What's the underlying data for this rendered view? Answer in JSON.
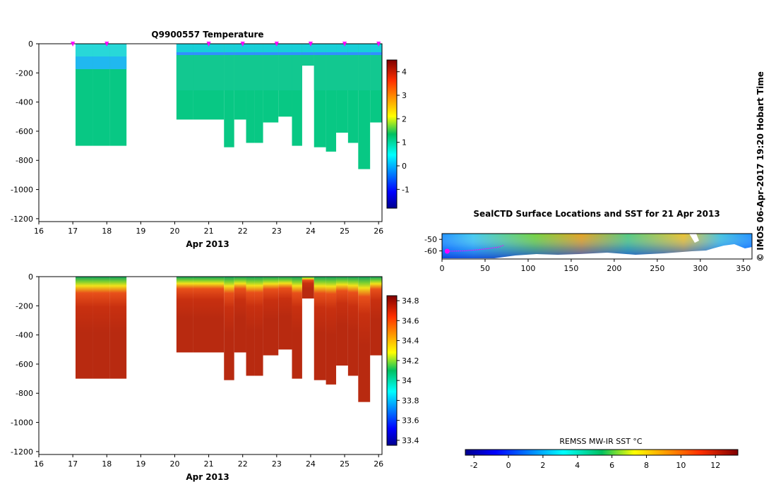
{
  "credit": "© IMOS 06-Apr-2017 19:20 Hobart Time",
  "chart_data": [
    {
      "name": "temperature-profile",
      "type": "heatmap",
      "title": "Q9900557  Temperature",
      "xlabel": "Apr 2013",
      "xticks": [
        "16",
        "17",
        "18",
        "19",
        "20",
        "21",
        "22",
        "23",
        "24",
        "25",
        "26"
      ],
      "xlim": [
        16,
        26.1
      ],
      "yticks": [
        "0",
        "-200",
        "-400",
        "-600",
        "-800",
        "-1000",
        "-1200"
      ],
      "ylim": [
        -1220,
        0
      ],
      "colorbar": {
        "ticks": [
          "4",
          "3",
          "2",
          "1",
          "0",
          "-1"
        ],
        "range": [
          -1.8,
          4.5
        ]
      },
      "casts": [
        {
          "t0": 17.08,
          "t1": 17.58,
          "depth": 700
        },
        {
          "t0": 17.58,
          "t1": 18.08,
          "depth": 700
        },
        {
          "t0": 18.08,
          "t1": 18.58,
          "depth": 700
        },
        {
          "t0": 20.05,
          "t1": 20.55,
          "depth": 520
        },
        {
          "t0": 20.55,
          "t1": 21.05,
          "depth": 520
        },
        {
          "t0": 21.05,
          "t1": 21.45,
          "depth": 520
        },
        {
          "t0": 21.45,
          "t1": 21.75,
          "depth": 710
        },
        {
          "t0": 21.75,
          "t1": 22.1,
          "depth": 520
        },
        {
          "t0": 22.1,
          "t1": 22.35,
          "depth": 680
        },
        {
          "t0": 22.35,
          "t1": 22.6,
          "depth": 680
        },
        {
          "t0": 22.6,
          "t1": 23.05,
          "depth": 540
        },
        {
          "t0": 23.05,
          "t1": 23.45,
          "depth": 500
        },
        {
          "t0": 23.45,
          "t1": 23.75,
          "depth": 700
        },
        {
          "t0": 23.75,
          "t1": 24.1,
          "depth": 150
        },
        {
          "t0": 24.1,
          "t1": 24.45,
          "depth": 710
        },
        {
          "t0": 24.45,
          "t1": 24.75,
          "depth": 740
        },
        {
          "t0": 24.75,
          "t1": 25.1,
          "depth": 610
        },
        {
          "t0": 25.1,
          "t1": 25.4,
          "depth": 680
        },
        {
          "t0": 25.4,
          "t1": 25.75,
          "depth": 860
        },
        {
          "t0": 25.75,
          "t1": 26.1,
          "depth": 540
        }
      ],
      "markers": [
        17,
        18,
        21,
        22,
        23,
        24,
        25,
        26
      ]
    },
    {
      "name": "salinity-profile",
      "type": "heatmap",
      "title": "",
      "xlabel": "Apr 2013",
      "xticks": [
        "16",
        "17",
        "18",
        "19",
        "20",
        "21",
        "22",
        "23",
        "24",
        "25",
        "26"
      ],
      "xlim": [
        16,
        26.1
      ],
      "yticks": [
        "0",
        "-200",
        "-400",
        "-600",
        "-800",
        "-1000",
        "-1200"
      ],
      "ylim": [
        -1220,
        0
      ],
      "colorbar": {
        "ticks": [
          "34.8",
          "34.6",
          "34.4",
          "34.2",
          "34",
          "33.8",
          "33.6",
          "33.4"
        ],
        "range": [
          33.35,
          34.85
        ]
      },
      "casts": "same-as-temperature"
    },
    {
      "name": "sst-map",
      "type": "heatmap",
      "title": "SealCTD Surface Locations and SST for 21 Apr 2013",
      "xticks": [
        "0",
        "50",
        "100",
        "150",
        "200",
        "250",
        "300",
        "350"
      ],
      "xlim": [
        0,
        360
      ],
      "yticks": [
        "-50",
        "-60"
      ],
      "ylim": [
        -67,
        -45
      ],
      "track_lon": [
        6,
        25,
        45,
        65,
        72
      ],
      "track_lat": [
        -60.3,
        -60.0,
        -58.8,
        -56.8,
        -55.0
      ],
      "colorbar": {
        "label": "REMSS MW-IR SST °C",
        "ticks": [
          "-2",
          "0",
          "2",
          "4",
          "6",
          "8",
          "10",
          "12"
        ],
        "range": [
          -2.5,
          13.3
        ]
      }
    }
  ]
}
